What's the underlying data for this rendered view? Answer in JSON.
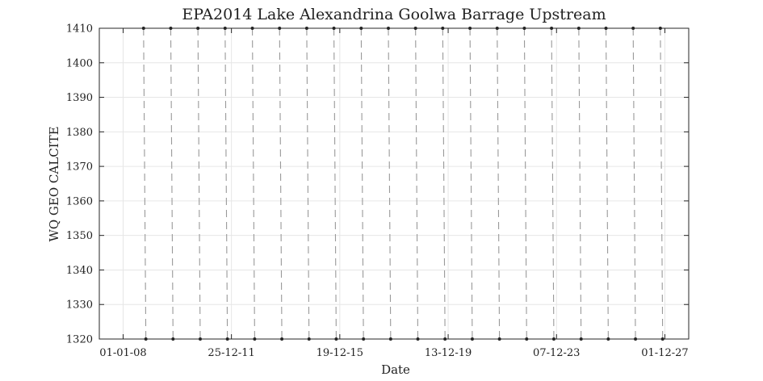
{
  "chart_data": {
    "type": "scatter",
    "title": "EPA2014 Lake Alexandrina Goolwa Barrage Upstream",
    "xlabel": "Date",
    "ylabel": "WQ GEO CALCITE",
    "ylim": [
      1320,
      1410
    ],
    "y_ticks": [
      1320,
      1330,
      1340,
      1350,
      1360,
      1370,
      1380,
      1390,
      1400,
      1410
    ],
    "x_ticks": [
      "01-01-08",
      "25-12-11",
      "19-12-15",
      "13-12-19",
      "07-12-23",
      "01-12-27"
    ],
    "grid": true,
    "series": [
      {
        "points_top": [
          {
            "x": "2008-10-01",
            "y": 1410
          },
          {
            "x": "2009-10-01",
            "y": 1410
          },
          {
            "x": "2010-10-01",
            "y": 1410
          },
          {
            "x": "2011-10-01",
            "y": 1410
          },
          {
            "x": "2012-10-01",
            "y": 1410
          },
          {
            "x": "2013-10-01",
            "y": 1410
          },
          {
            "x": "2014-10-01",
            "y": 1410
          },
          {
            "x": "2015-10-01",
            "y": 1410
          },
          {
            "x": "2016-10-01",
            "y": 1410
          },
          {
            "x": "2017-10-01",
            "y": 1410
          },
          {
            "x": "2018-10-01",
            "y": 1410
          },
          {
            "x": "2019-10-01",
            "y": 1410
          },
          {
            "x": "2020-10-01",
            "y": 1410
          },
          {
            "x": "2021-10-01",
            "y": 1410
          },
          {
            "x": "2022-10-01",
            "y": 1410
          },
          {
            "x": "2023-10-01",
            "y": 1410
          },
          {
            "x": "2024-10-01",
            "y": 1410
          },
          {
            "x": "2025-10-01",
            "y": 1410
          },
          {
            "x": "2026-10-01",
            "y": 1410
          },
          {
            "x": "2027-10-01",
            "y": 1410
          }
        ],
        "points_bottom": [
          {
            "x": "2008-11-01",
            "y": 1320
          },
          {
            "x": "2009-11-01",
            "y": 1320
          },
          {
            "x": "2010-11-01",
            "y": 1320
          },
          {
            "x": "2011-11-01",
            "y": 1320
          },
          {
            "x": "2012-11-01",
            "y": 1320
          },
          {
            "x": "2013-11-01",
            "y": 1320
          },
          {
            "x": "2014-11-01",
            "y": 1320
          },
          {
            "x": "2015-11-01",
            "y": 1320
          },
          {
            "x": "2016-11-01",
            "y": 1320
          },
          {
            "x": "2017-11-01",
            "y": 1320
          },
          {
            "x": "2018-11-01",
            "y": 1320
          },
          {
            "x": "2019-11-01",
            "y": 1320
          },
          {
            "x": "2020-11-01",
            "y": 1320
          },
          {
            "x": "2021-11-01",
            "y": 1320
          },
          {
            "x": "2022-11-01",
            "y": 1320
          },
          {
            "x": "2023-11-01",
            "y": 1320
          },
          {
            "x": "2024-11-01",
            "y": 1320
          },
          {
            "x": "2025-11-01",
            "y": 1320
          },
          {
            "x": "2026-11-01",
            "y": 1320
          },
          {
            "x": "2027-11-01",
            "y": 1320
          }
        ]
      }
    ]
  }
}
